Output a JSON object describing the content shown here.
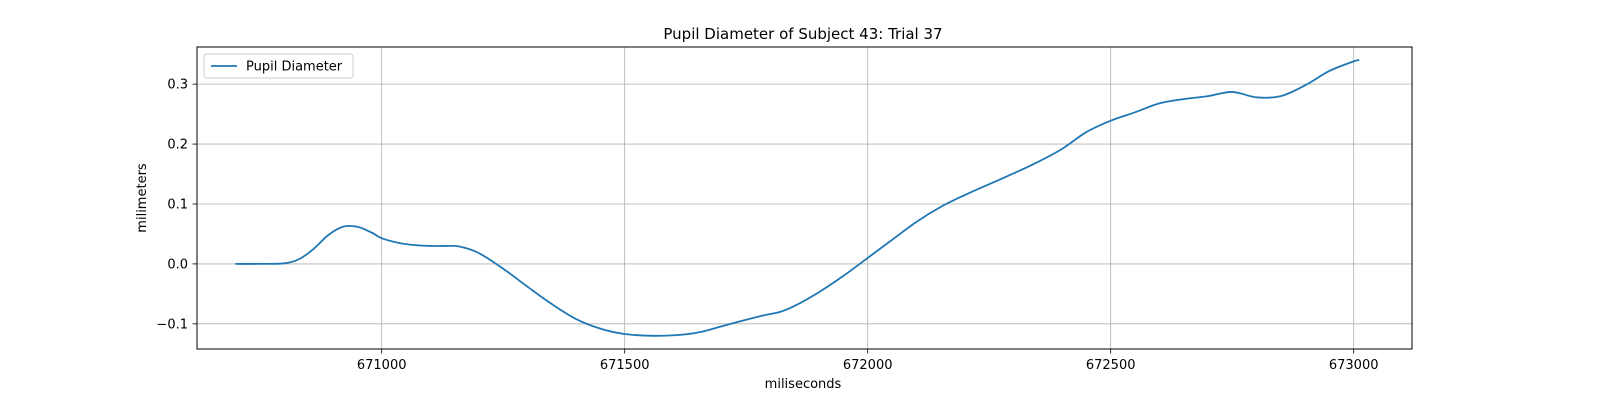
{
  "chart_data": {
    "type": "line",
    "title": "Pupil Diameter of Subject 43: Trial 37",
    "xlabel": "miliseconds",
    "ylabel": "milimeters",
    "xlim": [
      670620,
      673120
    ],
    "ylim": [
      -0.142,
      0.362
    ],
    "xticks": [
      671000,
      671500,
      672000,
      672500,
      673000
    ],
    "yticks": [
      -0.1,
      0.0,
      0.1,
      0.2,
      0.3
    ],
    "ytick_labels": [
      "−0.1",
      "0.0",
      "0.1",
      "0.2",
      "0.3"
    ],
    "grid": true,
    "legend": {
      "position": "top-left",
      "entries": [
        "Pupil Diameter"
      ]
    },
    "series": [
      {
        "name": "Pupil Diameter",
        "color": "#1f77b4",
        "x": [
          670700,
          670750,
          670800,
          670830,
          670860,
          670890,
          670920,
          670950,
          670980,
          671000,
          671030,
          671060,
          671100,
          671130,
          671160,
          671200,
          671250,
          671300,
          671350,
          671400,
          671450,
          671500,
          671560,
          671620,
          671660,
          671700,
          671780,
          671820,
          671850,
          671900,
          671950,
          672000,
          672050,
          672100,
          672150,
          672200,
          672250,
          672300,
          672350,
          672400,
          672450,
          672500,
          672550,
          672600,
          672650,
          672700,
          672750,
          672800,
          672850,
          672900,
          672950,
          673000,
          673010
        ],
        "y": [
          0.0,
          0.0,
          0.001,
          0.008,
          0.025,
          0.048,
          0.062,
          0.062,
          0.052,
          0.043,
          0.036,
          0.032,
          0.03,
          0.03,
          0.029,
          0.018,
          -0.008,
          -0.038,
          -0.067,
          -0.092,
          -0.108,
          -0.117,
          -0.12,
          -0.118,
          -0.113,
          -0.104,
          -0.087,
          -0.08,
          -0.07,
          -0.047,
          -0.02,
          0.01,
          0.04,
          0.07,
          0.095,
          0.115,
          0.133,
          0.151,
          0.17,
          0.192,
          0.22,
          0.239,
          0.253,
          0.268,
          0.275,
          0.28,
          0.287,
          0.278,
          0.28,
          0.298,
          0.322,
          0.338,
          0.34
        ]
      }
    ]
  }
}
